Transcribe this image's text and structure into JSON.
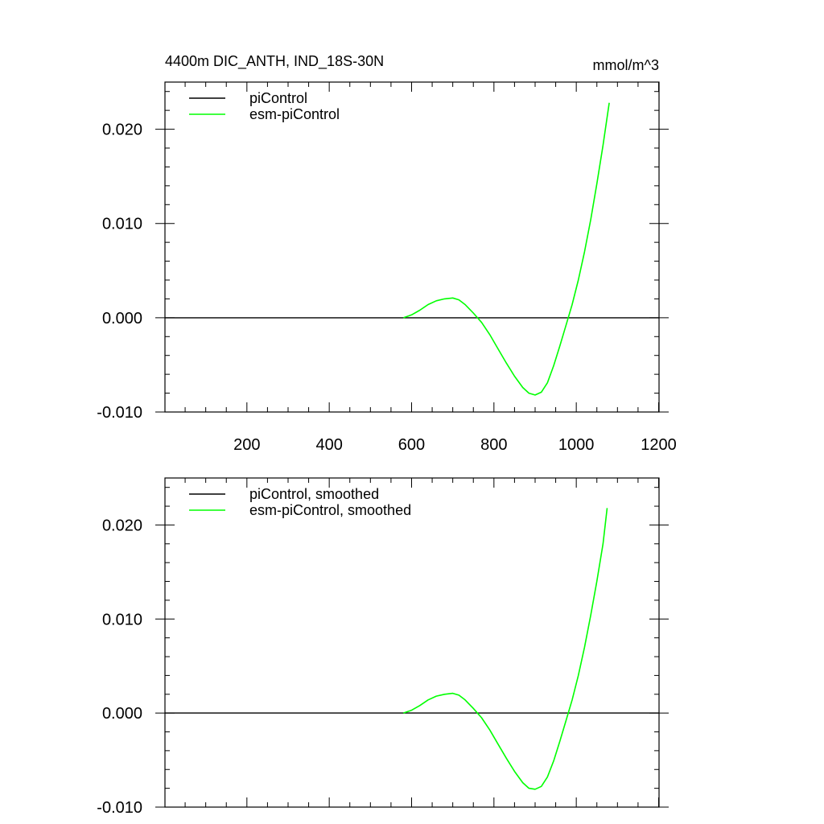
{
  "chart_data": [
    {
      "type": "line",
      "title_left": "4400m DIC_ANTH, IND_18S-30N",
      "title_right": "mmol/m^3",
      "xlim": [
        1,
        1201
      ],
      "ylim": [
        -0.01,
        0.025
      ],
      "x_ticks": [
        200,
        400,
        600,
        800,
        1000,
        1200
      ],
      "x_tick_labels": [
        "200",
        "400",
        "600",
        "800",
        "1000",
        "1200"
      ],
      "y_ticks": [
        -0.01,
        0.0,
        0.01,
        0.02
      ],
      "y_tick_labels": [
        "-0.010",
        "0.000",
        "0.010",
        "0.020"
      ],
      "grid": false,
      "legend_position": "top-left",
      "series": [
        {
          "name": "piControl",
          "color": "#000000",
          "x": [
            1,
            1201
          ],
          "y": [
            0.0,
            0.0
          ]
        },
        {
          "name": "esm-piControl",
          "color": "#00ff00",
          "x": [
            580,
            600,
            620,
            640,
            660,
            680,
            700,
            715,
            730,
            750,
            770,
            790,
            810,
            830,
            850,
            870,
            885,
            900,
            915,
            930,
            945,
            960,
            975,
            990,
            1005,
            1020,
            1035,
            1050,
            1065,
            1080
          ],
          "y": [
            0.0,
            0.0003,
            0.0008,
            0.0014,
            0.0018,
            0.002,
            0.0021,
            0.0019,
            0.0014,
            0.0005,
            -0.0005,
            -0.0018,
            -0.0033,
            -0.0048,
            -0.0062,
            -0.0074,
            -0.008,
            -0.0082,
            -0.0079,
            -0.0069,
            -0.0051,
            -0.003,
            -0.0008,
            0.0014,
            0.004,
            0.007,
            0.0104,
            0.0142,
            0.0183,
            0.0228
          ]
        }
      ]
    },
    {
      "type": "line",
      "title_left": "",
      "title_right": "",
      "xlim": [
        1,
        1201
      ],
      "ylim": [
        -0.01,
        0.025
      ],
      "x_ticks": [
        200,
        400,
        600,
        800,
        1000,
        1200
      ],
      "x_tick_labels": [],
      "y_ticks": [
        -0.01,
        0.0,
        0.01,
        0.02
      ],
      "y_tick_labels": [
        "-0.010",
        "0.000",
        "0.010",
        "0.020"
      ],
      "grid": false,
      "legend_position": "top-left",
      "series": [
        {
          "name": "piControl, smoothed",
          "color": "#000000",
          "x": [
            1,
            1201
          ],
          "y": [
            0.0,
            0.0
          ]
        },
        {
          "name": "esm-piControl, smoothed",
          "color": "#00ff00",
          "x": [
            580,
            600,
            620,
            640,
            660,
            680,
            700,
            715,
            730,
            750,
            770,
            790,
            810,
            830,
            850,
            870,
            885,
            900,
            915,
            930,
            945,
            960,
            975,
            990,
            1005,
            1020,
            1035,
            1050,
            1065,
            1075
          ],
          "y": [
            0.0,
            0.0003,
            0.0008,
            0.0014,
            0.0018,
            0.002,
            0.0021,
            0.0019,
            0.0014,
            0.0005,
            -0.0005,
            -0.0018,
            -0.0033,
            -0.0048,
            -0.0062,
            -0.0074,
            -0.008,
            -0.0081,
            -0.0078,
            -0.0068,
            -0.0051,
            -0.003,
            -0.0008,
            0.0014,
            0.004,
            0.007,
            0.0104,
            0.014,
            0.018,
            0.0218
          ]
        }
      ]
    }
  ]
}
